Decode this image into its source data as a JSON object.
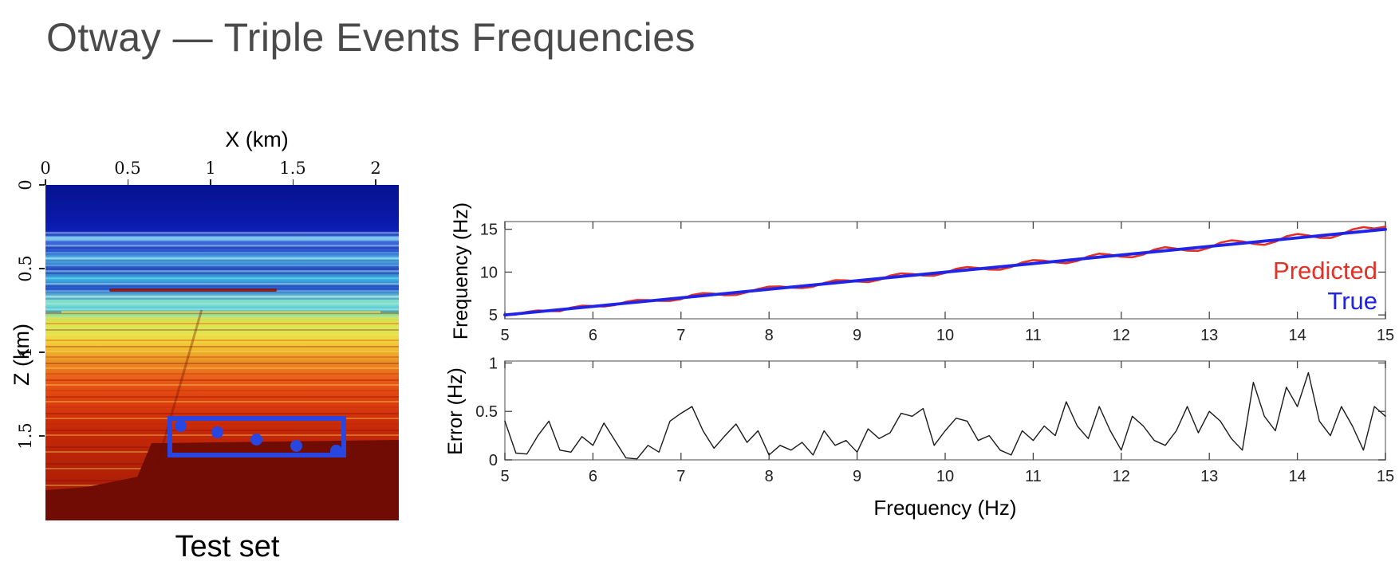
{
  "slide": {
    "title": "Otway — Triple Events Frequencies"
  },
  "seismic": {
    "caption": "Test set",
    "colormap": "jet",
    "x_axis": {
      "label": "X (km)",
      "tick_values": [
        0,
        0.5,
        1,
        1.5,
        2
      ],
      "tick_labels": [
        "0",
        "0.5",
        "1",
        "1.5",
        "2"
      ]
    },
    "z_axis": {
      "label": "Z (km)",
      "tick_values": [
        0,
        0.5,
        1,
        1.5
      ],
      "tick_labels": [
        "0",
        "0.5",
        "1",
        "1.5"
      ]
    },
    "test_region": {
      "x_km": [
        0.74,
        1.82
      ],
      "z_km": [
        1.38,
        1.63
      ],
      "color": "#2a46e0"
    },
    "markers_km": [
      {
        "x": 0.82,
        "z": 1.44
      },
      {
        "x": 1.04,
        "z": 1.48
      },
      {
        "x": 1.28,
        "z": 1.52
      },
      {
        "x": 1.52,
        "z": 1.56
      },
      {
        "x": 1.76,
        "z": 1.59
      }
    ]
  },
  "chart_data": [
    {
      "id": "frequency-comparison",
      "type": "line",
      "title": "",
      "xlabel": "",
      "ylabel": "Frequency (Hz)",
      "xlim": [
        5,
        15
      ],
      "ylim": [
        4.55,
        15.9
      ],
      "grid": false,
      "legend_position": "lower right",
      "x_tick_values": [
        5,
        6,
        7,
        8,
        9,
        10,
        11,
        12,
        13,
        14,
        15
      ],
      "x_tick_labels": [
        "5",
        "6",
        "7",
        "8",
        "9",
        "10",
        "11",
        "12",
        "13",
        "14",
        "15"
      ],
      "y_tick_values": [
        5,
        10,
        15
      ],
      "y_tick_labels": [
        "5",
        "10",
        "15"
      ],
      "legend": {
        "predicted_label": "Predicted",
        "true_label": "True"
      },
      "series": [
        {
          "name": "Predicted",
          "color": "#e03226",
          "stroke_width": 2.6,
          "x_start": 5,
          "x_step": 0.125,
          "values": [
            5.0,
            5.03,
            5.35,
            5.53,
            5.45,
            5.43,
            5.85,
            6.08,
            6.05,
            5.98,
            6.15,
            6.53,
            6.75,
            6.73,
            6.65,
            6.63,
            6.85,
            7.33,
            7.55,
            7.48,
            7.3,
            7.33,
            7.65,
            8.03,
            8.3,
            8.33,
            8.2,
            8.13,
            8.3,
            8.73,
            9.05,
            9.03,
            8.9,
            8.83,
            9.1,
            9.58,
            9.85,
            9.78,
            9.6,
            9.58,
            9.9,
            10.38,
            10.6,
            10.48,
            10.3,
            10.28,
            10.6,
            11.13,
            11.4,
            11.33,
            11.15,
            11.03,
            11.3,
            11.83,
            12.15,
            12.03,
            11.8,
            11.73,
            12.05,
            12.63,
            12.9,
            12.73,
            12.5,
            12.48,
            12.85,
            13.43,
            13.7,
            13.58,
            13.3,
            13.18,
            13.55,
            14.18,
            14.45,
            14.28,
            14.0,
            13.98,
            14.4,
            14.98,
            15.25,
            15.08,
            15.3
          ]
        },
        {
          "name": "True",
          "color": "#1f24e8",
          "stroke_width": 3.8,
          "x": [
            5,
            15
          ],
          "y": [
            5,
            15
          ]
        }
      ]
    },
    {
      "id": "frequency-error",
      "type": "line",
      "title": "",
      "xlabel": "Frequency (Hz)",
      "ylabel": "Error (Hz)",
      "xlim": [
        5,
        15
      ],
      "ylim": [
        0,
        1.02
      ],
      "grid": false,
      "x_tick_values": [
        5,
        6,
        7,
        8,
        9,
        10,
        11,
        12,
        13,
        14,
        15
      ],
      "x_tick_labels": [
        "5",
        "6",
        "7",
        "8",
        "9",
        "10",
        "11",
        "12",
        "13",
        "14",
        "15"
      ],
      "y_tick_values": [
        0,
        0.5,
        1
      ],
      "y_tick_labels": [
        "0",
        "0.5",
        "1"
      ],
      "series": [
        {
          "name": "Error",
          "color": "#1a1a1a",
          "stroke_width": 1.4,
          "x_start": 5,
          "x_step": 0.125,
          "values": [
            0.4,
            0.07,
            0.06,
            0.25,
            0.4,
            0.1,
            0.08,
            0.24,
            0.15,
            0.38,
            0.2,
            0.02,
            0.01,
            0.15,
            0.08,
            0.4,
            0.48,
            0.55,
            0.3,
            0.12,
            0.25,
            0.37,
            0.18,
            0.3,
            0.05,
            0.15,
            0.1,
            0.18,
            0.05,
            0.3,
            0.15,
            0.2,
            0.08,
            0.32,
            0.22,
            0.28,
            0.48,
            0.45,
            0.53,
            0.15,
            0.3,
            0.43,
            0.4,
            0.2,
            0.25,
            0.1,
            0.05,
            0.3,
            0.2,
            0.35,
            0.25,
            0.6,
            0.35,
            0.22,
            0.55,
            0.3,
            0.1,
            0.45,
            0.35,
            0.2,
            0.15,
            0.3,
            0.55,
            0.28,
            0.5,
            0.4,
            0.22,
            0.1,
            0.8,
            0.45,
            0.3,
            0.75,
            0.55,
            0.9,
            0.4,
            0.25,
            0.55,
            0.35,
            0.1,
            0.55,
            0.45
          ]
        }
      ]
    }
  ]
}
